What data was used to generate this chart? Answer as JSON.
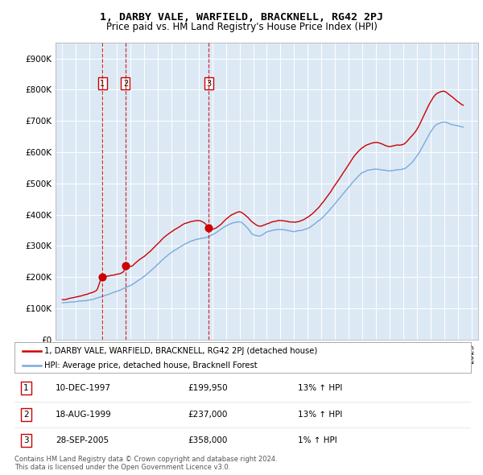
{
  "title": "1, DARBY VALE, WARFIELD, BRACKNELL, RG42 2PJ",
  "subtitle": "Price paid vs. HM Land Registry's House Price Index (HPI)",
  "plot_bg_color": "#dce9f5",
  "legend_line1": "1, DARBY VALE, WARFIELD, BRACKNELL, RG42 2PJ (detached house)",
  "legend_line2": "HPI: Average price, detached house, Bracknell Forest",
  "transactions": [
    {
      "id": 1,
      "date": "10-DEC-1997",
      "price": 199950,
      "hpi_pct": "13% ↑ HPI",
      "x": 1997.94
    },
    {
      "id": 2,
      "date": "18-AUG-1999",
      "price": 237000,
      "hpi_pct": "13% ↑ HPI",
      "x": 1999.63
    },
    {
      "id": 3,
      "date": "28-SEP-2005",
      "price": 358000,
      "hpi_pct": "1% ↑ HPI",
      "x": 2005.74
    }
  ],
  "footer_line1": "Contains HM Land Registry data © Crown copyright and database right 2024.",
  "footer_line2": "This data is licensed under the Open Government Licence v3.0.",
  "ylim": [
    0,
    950000
  ],
  "yticks": [
    0,
    100000,
    200000,
    300000,
    400000,
    500000,
    600000,
    700000,
    800000,
    900000
  ],
  "xlim": [
    1994.5,
    2025.5
  ],
  "red_line_color": "#cc0000",
  "blue_line_color": "#7aaadd"
}
